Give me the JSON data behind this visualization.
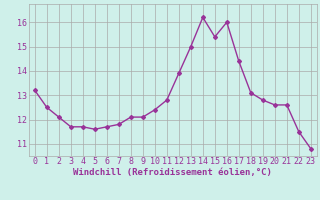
{
  "x": [
    0,
    1,
    2,
    3,
    4,
    5,
    6,
    7,
    8,
    9,
    10,
    11,
    12,
    13,
    14,
    15,
    16,
    17,
    18,
    19,
    20,
    21,
    22,
    23
  ],
  "y": [
    13.2,
    12.5,
    12.1,
    11.7,
    11.7,
    11.6,
    11.7,
    11.8,
    12.1,
    12.1,
    12.4,
    12.8,
    13.9,
    15.0,
    16.2,
    15.4,
    16.0,
    14.4,
    13.1,
    12.8,
    12.6,
    12.6,
    11.5,
    10.8
  ],
  "xlabel": "Windchill (Refroidissement éolien,°C)",
  "xticks": [
    0,
    1,
    2,
    3,
    4,
    5,
    6,
    7,
    8,
    9,
    10,
    11,
    12,
    13,
    14,
    15,
    16,
    17,
    18,
    19,
    20,
    21,
    22,
    23
  ],
  "xlim": [
    -0.5,
    23.5
  ],
  "ylim": [
    10.5,
    16.75
  ],
  "yticks": [
    11,
    12,
    13,
    14,
    15,
    16
  ],
  "line_color": "#993399",
  "marker": "D",
  "marker_size": 2.0,
  "bg_color": "#cff0ea",
  "grid_color": "#aaaaaa",
  "tick_label_color": "#993399",
  "xlabel_color": "#993399",
  "xlabel_fontsize": 6.5,
  "tick_fontsize": 6.0,
  "linewidth": 1.0
}
